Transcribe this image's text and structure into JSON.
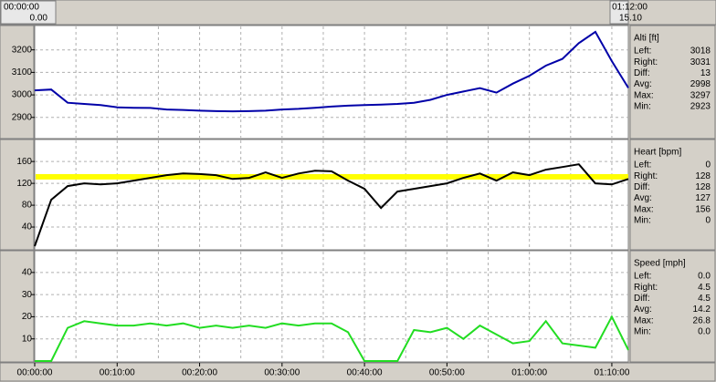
{
  "header": {
    "left_time": "00:00:00",
    "left_value": "0.00",
    "right_time": "01:12:00",
    "right_value": "15.10"
  },
  "time_axis": {
    "xlim": [
      0,
      72
    ],
    "xticks": [
      {
        "value": 0,
        "label": "00:00:00"
      },
      {
        "value": 10,
        "label": "00:10:00"
      },
      {
        "value": 20,
        "label": "00:20:00"
      },
      {
        "value": 30,
        "label": "00:30:00"
      },
      {
        "value": 40,
        "label": "00:40:00"
      },
      {
        "value": 50,
        "label": "00:50:00"
      },
      {
        "value": 60,
        "label": "01:00:00"
      },
      {
        "value": 70,
        "label": "01:10:00"
      }
    ],
    "grid": [
      5,
      10,
      15,
      20,
      25,
      30,
      35,
      40,
      45,
      50,
      55,
      60,
      65,
      70
    ]
  },
  "chart_data": [
    {
      "type": "line",
      "title": "Alti [ft]",
      "color": "#0000a8",
      "x": [
        0,
        2,
        4,
        6,
        8,
        10,
        12,
        14,
        16,
        18,
        20,
        22,
        24,
        26,
        28,
        30,
        32,
        34,
        36,
        38,
        40,
        42,
        44,
        46,
        48,
        50,
        52,
        54,
        56,
        58,
        60,
        62,
        64,
        66,
        68,
        70,
        72
      ],
      "values": [
        3020,
        3024,
        2965,
        2960,
        2955,
        2945,
        2943,
        2942,
        2935,
        2933,
        2930,
        2928,
        2927,
        2928,
        2930,
        2935,
        2938,
        2943,
        2948,
        2952,
        2955,
        2957,
        2960,
        2965,
        2978,
        3000,
        3015,
        3030,
        3010,
        3050,
        3085,
        3130,
        3160,
        3230,
        3280,
        3150,
        3031
      ],
      "ylim": [
        2810,
        3300
      ],
      "yticks": [
        2900,
        3000,
        3100,
        3200
      ],
      "grid": true,
      "stats": [
        [
          "Left:",
          "3018"
        ],
        [
          "Right:",
          "3031"
        ],
        [
          "Diff:",
          "13"
        ],
        [
          "Avg:",
          "2998"
        ],
        [
          "Max:",
          "3297"
        ],
        [
          "Min:",
          "2923"
        ]
      ]
    },
    {
      "type": "line",
      "title": "Heart [bpm]",
      "color": "#000000",
      "zone": [
        127,
        137
      ],
      "zone_color": "#ffff00",
      "x": [
        0,
        2,
        4,
        6,
        8,
        10,
        12,
        14,
        16,
        18,
        20,
        22,
        24,
        26,
        28,
        30,
        32,
        34,
        36,
        38,
        40,
        42,
        44,
        46,
        48,
        50,
        52,
        54,
        56,
        58,
        60,
        62,
        64,
        66,
        68,
        70,
        72
      ],
      "values": [
        5,
        90,
        115,
        120,
        118,
        120,
        125,
        130,
        135,
        138,
        137,
        135,
        128,
        130,
        140,
        130,
        138,
        143,
        142,
        125,
        110,
        75,
        105,
        110,
        115,
        120,
        130,
        138,
        125,
        140,
        135,
        145,
        150,
        155,
        120,
        118,
        128
      ],
      "ylim": [
        0,
        197
      ],
      "yticks": [
        40,
        80,
        120,
        160
      ],
      "grid": true,
      "stats": [
        [
          "Left:",
          "0"
        ],
        [
          "Right:",
          "128"
        ],
        [
          "Diff:",
          "128"
        ],
        [
          "Avg:",
          "127"
        ],
        [
          "Max:",
          "156"
        ],
        [
          "Min:",
          "0"
        ]
      ]
    },
    {
      "type": "line",
      "title": "Speed [mph]",
      "color": "#22dd22",
      "x": [
        0,
        2,
        4,
        6,
        8,
        10,
        12,
        14,
        16,
        18,
        20,
        22,
        24,
        26,
        28,
        30,
        32,
        34,
        36,
        38,
        40,
        42,
        44,
        46,
        48,
        50,
        52,
        54,
        56,
        58,
        60,
        62,
        64,
        66,
        68,
        70,
        72
      ],
      "values": [
        0,
        0,
        15,
        18,
        17,
        16,
        16,
        17,
        16,
        17,
        15,
        16,
        15,
        16,
        15,
        17,
        16,
        17,
        17,
        13,
        0,
        0,
        0,
        14,
        13,
        15,
        10,
        16,
        12,
        8,
        9,
        18,
        8,
        7,
        6,
        20,
        5
      ],
      "ylim": [
        0,
        49
      ],
      "yticks": [
        10,
        20,
        30,
        40
      ],
      "grid": true,
      "stats": [
        [
          "Left:",
          "0.0"
        ],
        [
          "Right:",
          "4.5"
        ],
        [
          "Diff:",
          "4.5"
        ],
        [
          "Avg:",
          "14.2"
        ],
        [
          "Max:",
          "26.8"
        ],
        [
          "Min:",
          "0.0"
        ]
      ]
    }
  ]
}
